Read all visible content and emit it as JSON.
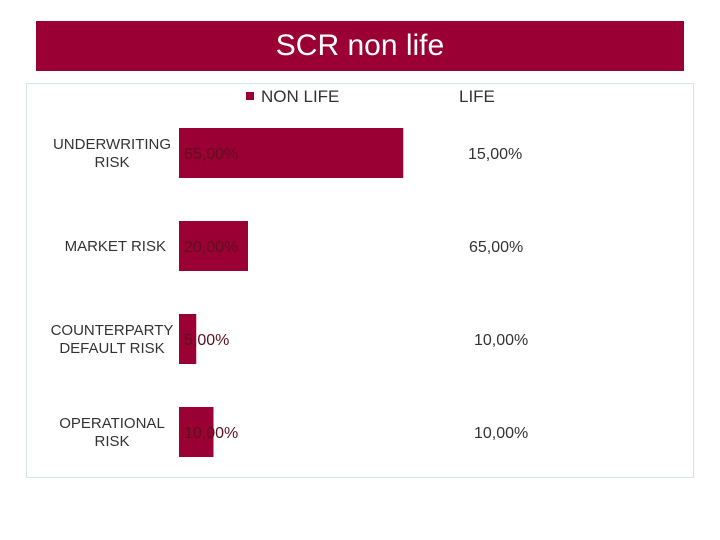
{
  "slide": {
    "title": "SCR non life"
  },
  "colors": {
    "accent": "#9b0034",
    "frame_border": "#d6e4e8",
    "text": "#333333"
  },
  "chart_data": {
    "type": "bar",
    "orientation": "horizontal",
    "categories": [
      [
        "UNDERWRITING",
        "RISK"
      ],
      [
        "MARKET RISK"
      ],
      [
        "COUNTERPARTY",
        "DEFAULT RISK"
      ],
      [
        "OPERATIONAL",
        "RISK"
      ]
    ],
    "series": [
      {
        "name": "NON LIFE",
        "values": [
          65,
          20,
          5,
          10
        ],
        "labels": [
          "65,00%",
          "20,00%",
          "5,00%",
          "10,00%"
        ],
        "color": "#9b0034"
      },
      {
        "name": "LIFE",
        "values": [
          15,
          65,
          10,
          10
        ],
        "labels": [
          "15,00%",
          "65,00%",
          "10,00%",
          "10,00%"
        ]
      }
    ],
    "xlim": [
      0,
      100
    ],
    "grid": false,
    "legend_position": "top"
  }
}
